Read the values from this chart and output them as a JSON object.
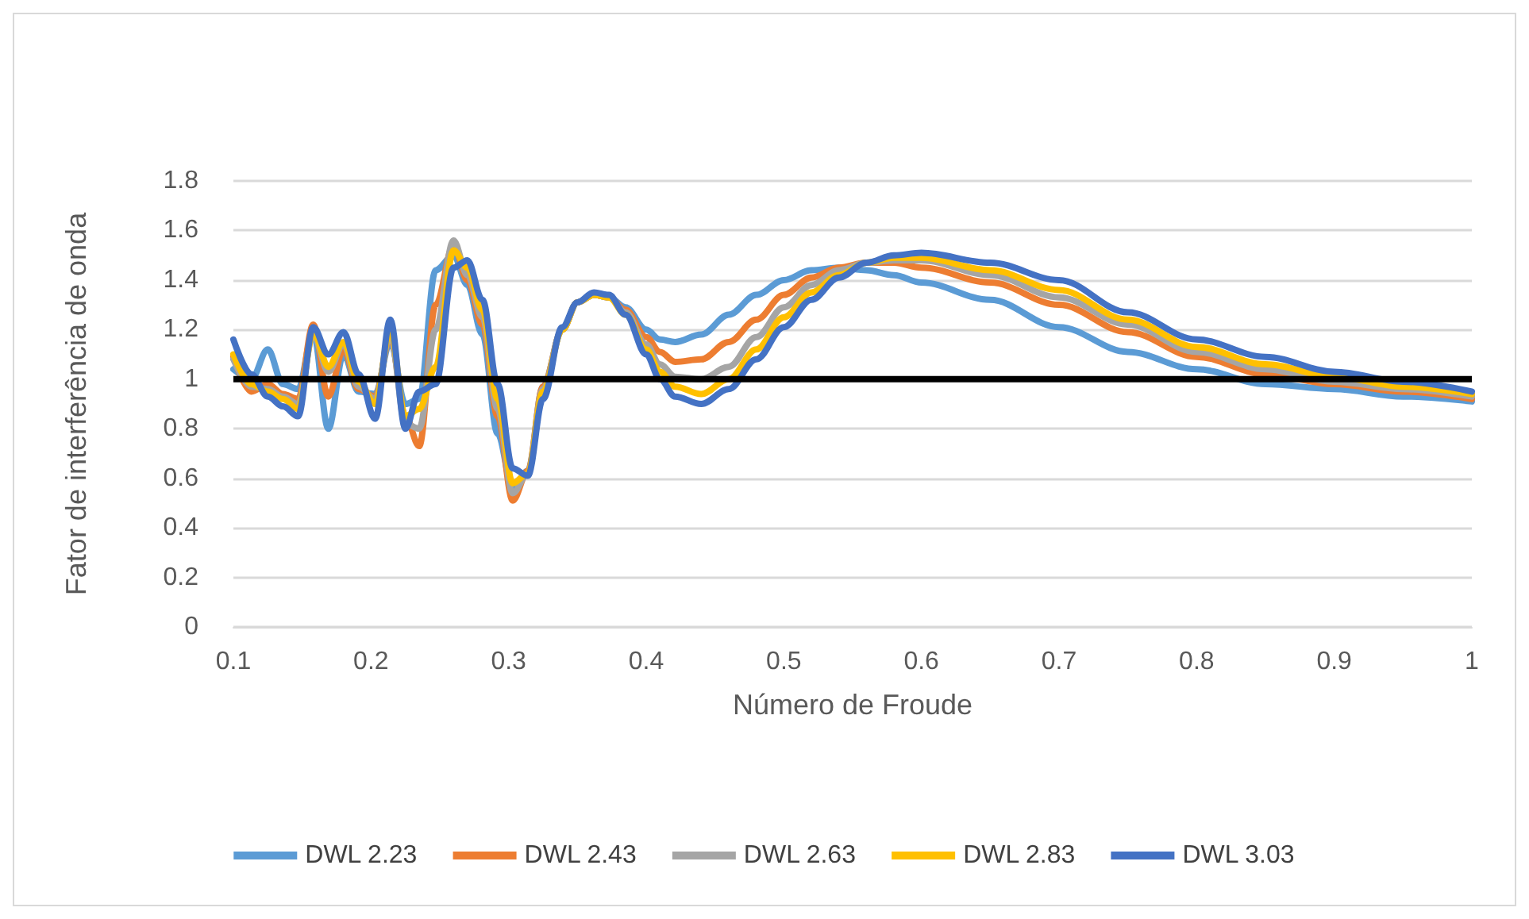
{
  "chart_data": {
    "type": "line",
    "xlabel": "Número de Froude",
    "ylabel": "Fator de interferência de onda",
    "x": [
      0.1,
      0.113,
      0.125,
      0.136,
      0.147,
      0.158,
      0.169,
      0.18,
      0.191,
      0.203,
      0.214,
      0.225,
      0.235,
      0.247,
      0.26,
      0.27,
      0.281,
      0.292,
      0.303,
      0.314,
      0.325,
      0.339,
      0.35,
      0.362,
      0.373,
      0.385,
      0.4,
      0.41,
      0.421,
      0.44,
      0.46,
      0.48,
      0.5,
      0.52,
      0.54,
      0.56,
      0.58,
      0.6,
      0.65,
      0.7,
      0.75,
      0.8,
      0.85,
      0.9,
      0.95,
      1.0
    ],
    "series": [
      {
        "name": "DWL 2.23",
        "color": "#5b9bd5",
        "values": [
          1.04,
          1.0,
          1.12,
          0.98,
          0.96,
          1.19,
          0.8,
          1.1,
          0.95,
          0.94,
          1.15,
          0.9,
          0.92,
          1.44,
          1.5,
          1.38,
          1.18,
          0.78,
          0.56,
          0.63,
          0.97,
          1.2,
          1.31,
          1.34,
          1.33,
          1.29,
          1.2,
          1.16,
          1.15,
          1.18,
          1.26,
          1.34,
          1.4,
          1.44,
          1.45,
          1.44,
          1.42,
          1.39,
          1.32,
          1.21,
          1.11,
          1.04,
          0.98,
          0.96,
          0.93,
          0.91
        ]
      },
      {
        "name": "DWL 2.43",
        "color": "#ed7d31",
        "values": [
          1.09,
          0.95,
          0.98,
          0.94,
          0.92,
          1.22,
          0.93,
          1.12,
          0.96,
          0.93,
          1.17,
          0.85,
          0.73,
          1.3,
          1.54,
          1.4,
          1.22,
          0.85,
          0.51,
          0.63,
          0.97,
          1.2,
          1.31,
          1.34,
          1.33,
          1.28,
          1.17,
          1.11,
          1.07,
          1.08,
          1.15,
          1.24,
          1.34,
          1.41,
          1.45,
          1.47,
          1.47,
          1.45,
          1.39,
          1.3,
          1.19,
          1.09,
          1.02,
          0.98,
          0.95,
          0.92
        ]
      },
      {
        "name": "DWL 2.63",
        "color": "#a5a5a5",
        "values": [
          1.08,
          0.97,
          0.96,
          0.93,
          0.9,
          1.18,
          1.03,
          1.14,
          0.97,
          0.92,
          1.18,
          0.82,
          0.8,
          1.2,
          1.56,
          1.42,
          1.25,
          0.88,
          0.54,
          0.62,
          0.96,
          1.2,
          1.31,
          1.34,
          1.33,
          1.27,
          1.14,
          1.06,
          1.01,
          1.0,
          1.05,
          1.17,
          1.29,
          1.38,
          1.44,
          1.47,
          1.48,
          1.48,
          1.42,
          1.33,
          1.22,
          1.11,
          1.04,
          0.99,
          0.96,
          0.93
        ]
      },
      {
        "name": "DWL 2.83",
        "color": "#ffc000",
        "values": [
          1.1,
          0.98,
          0.95,
          0.92,
          0.88,
          1.19,
          1.05,
          1.15,
          0.99,
          0.9,
          1.2,
          0.85,
          0.88,
          1.05,
          1.52,
          1.45,
          1.28,
          0.92,
          0.58,
          0.62,
          0.95,
          1.2,
          1.31,
          1.34,
          1.33,
          1.26,
          1.12,
          1.03,
          0.97,
          0.94,
          1.0,
          1.12,
          1.25,
          1.35,
          1.42,
          1.47,
          1.49,
          1.49,
          1.44,
          1.36,
          1.24,
          1.13,
          1.06,
          1.01,
          0.97,
          0.94
        ]
      },
      {
        "name": "DWL 3.03",
        "color": "#4472c4",
        "values": [
          1.16,
          1.02,
          0.93,
          0.89,
          0.85,
          1.21,
          1.1,
          1.19,
          1.02,
          0.84,
          1.24,
          0.8,
          0.95,
          0.98,
          1.45,
          1.48,
          1.32,
          0.98,
          0.64,
          0.61,
          0.92,
          1.21,
          1.31,
          1.35,
          1.34,
          1.26,
          1.1,
          1.0,
          0.93,
          0.9,
          0.96,
          1.08,
          1.21,
          1.32,
          1.41,
          1.47,
          1.5,
          1.51,
          1.47,
          1.4,
          1.27,
          1.16,
          1.09,
          1.03,
          0.99,
          0.95
        ]
      }
    ],
    "xlim": [
      0.1,
      1
    ],
    "xticks": [
      0.1,
      0.2,
      0.3,
      0.4,
      0.5,
      0.6,
      0.7,
      0.8,
      0.9,
      1
    ],
    "ylim": [
      0,
      1.8
    ],
    "yticks": [
      0,
      0.2,
      0.4,
      0.6,
      0.8,
      1,
      1.2,
      1.4,
      1.6,
      1.8
    ],
    "ref_lines": [
      {
        "axis": "y",
        "value": 1,
        "color": "#000000"
      }
    ],
    "grid": "y",
    "legend": "bottom",
    "marker": "none",
    "line_style": "solid"
  }
}
